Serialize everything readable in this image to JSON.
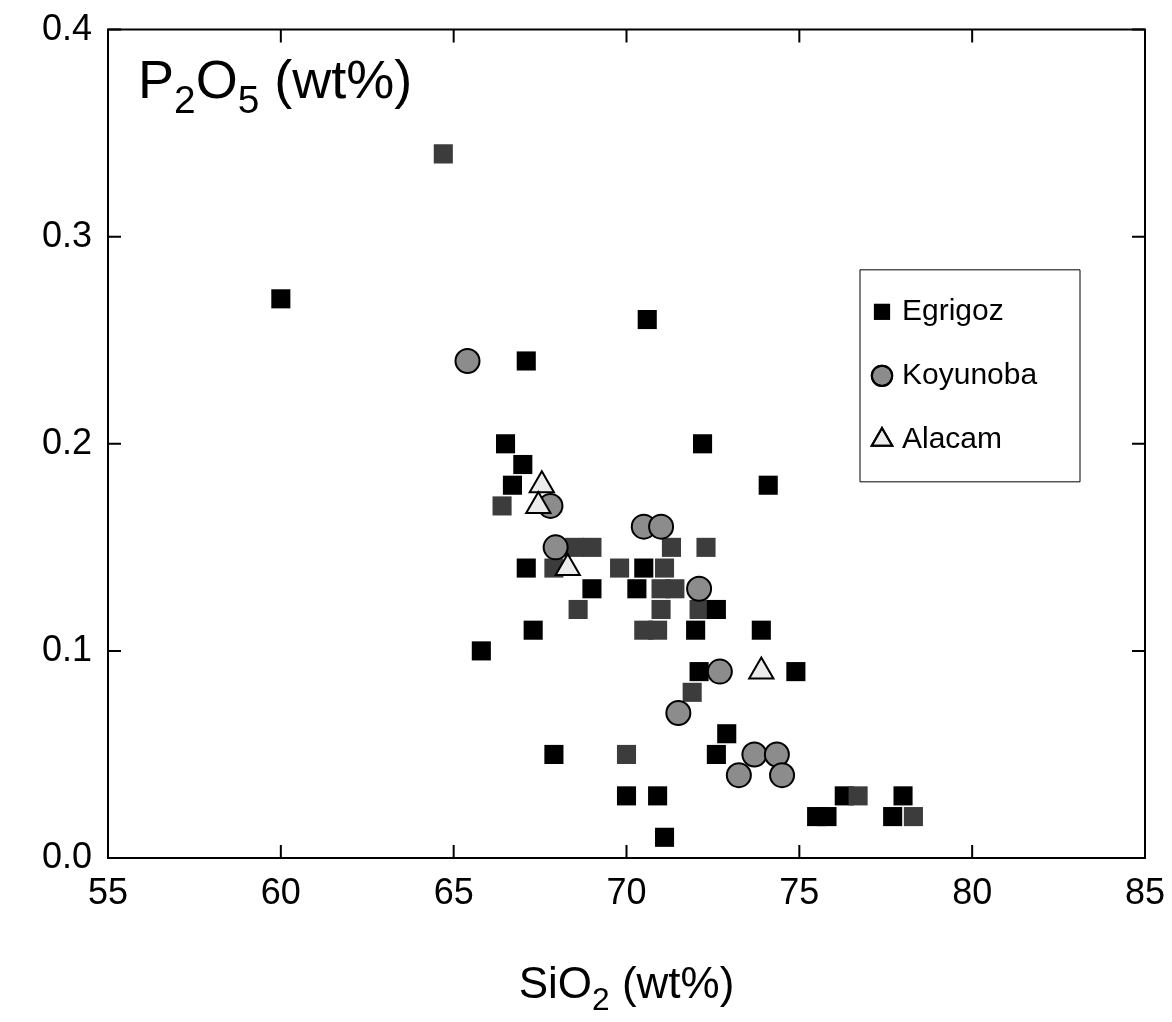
{
  "chart_data": {
    "type": "scatter",
    "ylabel": "P$_{2}$O$_{5}$ (wt%)",
    "xlabel": "SiO$_{2}$ (wt%)",
    "xlim": [
      55,
      85
    ],
    "xticks": [
      55,
      60,
      65,
      70,
      75,
      80,
      85
    ],
    "ylim": [
      0,
      0.4
    ],
    "yticks": [
      {
        "value": 0,
        "label": "0.0"
      },
      0.1,
      0.2,
      0.3,
      0.4
    ],
    "grid": false,
    "legend": "right",
    "series": [
      {
        "name": "Egrigoz",
        "color": "#000000",
        "marker": "square",
        "x": [
          60.0,
          64.7,
          67.1,
          70.6,
          66.5,
          67.0,
          66.7,
          66.4,
          72.2,
          74.1,
          67.1,
          67.9,
          68.5,
          69.0,
          69.8,
          70.5,
          71.1,
          71.3,
          72.3,
          69.0,
          70.3,
          71.0,
          71.4,
          68.6,
          71.0,
          72.1,
          72.6,
          67.3,
          70.5,
          70.9,
          72.0,
          73.9,
          65.8,
          72.1,
          74.9,
          71.9,
          72.9,
          67.9,
          70.0,
          72.6,
          70.0,
          70.9,
          71.1,
          76.3,
          76.7,
          78.0,
          75.5,
          75.8,
          77.7,
          78.3
        ],
        "values": [
          0.27,
          0.34,
          0.24,
          0.26,
          0.2,
          0.19,
          0.18,
          0.17,
          0.2,
          0.18,
          0.14,
          0.14,
          0.15,
          0.15,
          0.14,
          0.14,
          0.14,
          0.15,
          0.15,
          0.13,
          0.13,
          0.13,
          0.13,
          0.12,
          0.12,
          0.12,
          0.12,
          0.11,
          0.11,
          0.11,
          0.11,
          0.11,
          0.1,
          0.09,
          0.09,
          0.08,
          0.06,
          0.05,
          0.05,
          0.05,
          0.03,
          0.03,
          0.01,
          0.03,
          0.03,
          0.03,
          0.02,
          0.02,
          0.02,
          0.02
        ],
        "colors": [
          "#000000",
          "#3c3c3c",
          "#000000",
          "#000000",
          "#000000",
          "#000000",
          "#000000",
          "#3c3c3c",
          "#000000",
          "#000000",
          "#000000",
          "#3c3c3c",
          "#3c3c3c",
          "#3c3c3c",
          "#3c3c3c",
          "#000000",
          "#3c3c3c",
          "#3c3c3c",
          "#3c3c3c",
          "#000000",
          "#000000",
          "#3c3c3c",
          "#3c3c3c",
          "#3c3c3c",
          "#3c3c3c",
          "#3c3c3c",
          "#000000",
          "#000000",
          "#3c3c3c",
          "#3c3c3c",
          "#000000",
          "#000000",
          "#000000",
          "#000000",
          "#000000",
          "#3c3c3c",
          "#000000",
          "#000000",
          "#3c3c3c",
          "#000000",
          "#000000",
          "#000000",
          "#000000",
          "#000000",
          "#3c3c3c",
          "#000000",
          "#000000",
          "#000000",
          "#000000",
          "#3c3c3c"
        ]
      },
      {
        "name": "Koyunoba",
        "color": "#8c8c8c",
        "marker": "circle",
        "x": [
          65.4,
          67.8,
          67.95,
          70.5,
          71.0,
          72.1,
          72.7,
          71.5,
          73.7,
          74.35,
          73.25,
          74.5
        ],
        "values": [
          0.24,
          0.17,
          0.15,
          0.16,
          0.16,
          0.13,
          0.09,
          0.07,
          0.05,
          0.05,
          0.04,
          0.04
        ]
      },
      {
        "name": "Alacam",
        "color": "#ececec",
        "marker": "triangle",
        "x": [
          67.55,
          67.45,
          68.3,
          73.9
        ],
        "values": [
          0.18,
          0.17,
          0.14,
          0.09
        ]
      }
    ]
  }
}
